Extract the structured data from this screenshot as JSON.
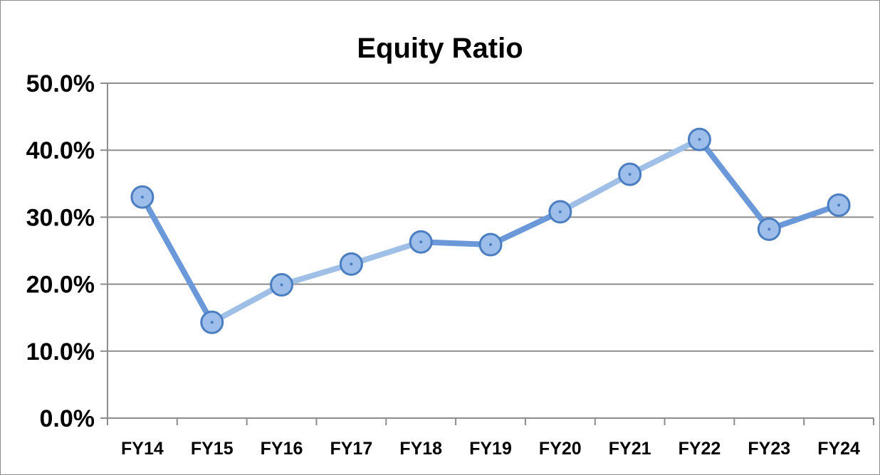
{
  "chart_data": {
    "type": "line",
    "title": "Equity Ratio",
    "xlabel": "",
    "ylabel": "",
    "categories": [
      "FY14",
      "FY15",
      "FY16",
      "FY17",
      "FY18",
      "FY19",
      "FY20",
      "FY21",
      "FY22",
      "FY23",
      "FY24"
    ],
    "series": [
      {
        "values": [
          33.0,
          14.3,
          19.9,
          23.0,
          26.3,
          25.9,
          30.8,
          36.4,
          41.6,
          28.2,
          31.8
        ]
      }
    ],
    "ylim": [
      0,
      50
    ],
    "yticks": [
      "0.0%",
      "10.0%",
      "20.0%",
      "30.0%",
      "40.0%",
      "50.0%"
    ],
    "grid": true,
    "legend": "none",
    "colors": {
      "line_dark": "#6a98d8",
      "line_light": "#9fbfe6",
      "marker_fill": "#9dbdea",
      "marker_stroke": "#4a7ec1",
      "gridline": "#8c8c8c"
    }
  }
}
